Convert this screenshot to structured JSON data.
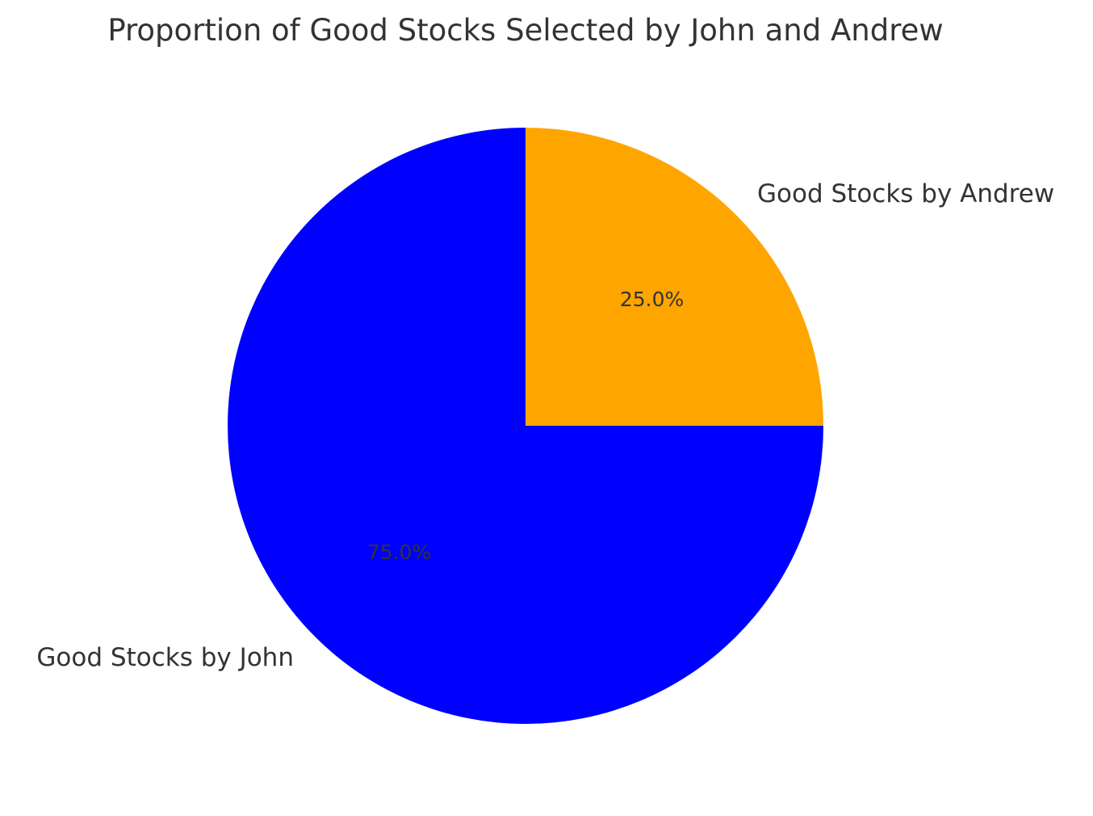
{
  "chart_data": {
    "type": "pie",
    "title": "Proportion of Good Stocks Selected by John and Andrew",
    "start_angle": 90,
    "direction": "counterclockwise",
    "slices": [
      {
        "label": "Good Stocks by John",
        "value": 75.0,
        "percent_label": "75.0%",
        "color": "#0000ff"
      },
      {
        "label": "Good Stocks by Andrew",
        "value": 25.0,
        "percent_label": "25.0%",
        "color": "#ffa500"
      }
    ]
  }
}
